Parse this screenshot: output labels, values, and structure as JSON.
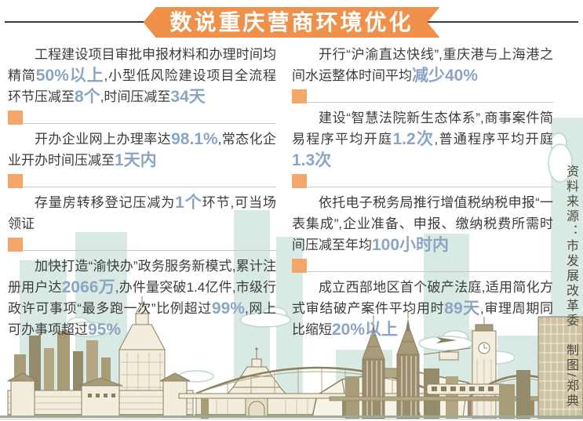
{
  "page": {
    "title_banner": "数说重庆营商环境优化"
  },
  "colors": {
    "banner_orange": "#f0914b",
    "bullet_orange": "#f3a76b",
    "highlight_blue": "#8ba5c5",
    "body_text": "#3c3c3c",
    "rule_dark": "#3a3a3a",
    "divider_gray": "#c9c9c9",
    "source_text": "#4f4b41"
  },
  "columns": {
    "left": [
      {
        "segments": [
          {
            "t": "工程建设项目审批申报材料和办理时间均精简"
          },
          {
            "t": "50%以上",
            "h": true
          },
          {
            "t": ",小型低风险建设项目全流程环节压减至"
          },
          {
            "t": "8个",
            "h": true
          },
          {
            "t": ",时间压减至"
          },
          {
            "t": "34天",
            "h": true
          }
        ]
      },
      {
        "segments": [
          {
            "t": "开办企业网上办理率达"
          },
          {
            "t": "98.1%",
            "h": true
          },
          {
            "t": ",常态化企业开办时间压减至"
          },
          {
            "t": "1天内",
            "h": true
          }
        ]
      },
      {
        "segments": [
          {
            "t": "存量房转移登记压减为"
          },
          {
            "t": "1个",
            "h": true
          },
          {
            "t": "环节,可当场领证"
          }
        ]
      },
      {
        "segments": [
          {
            "t": "加快打造“渝快办”政务服务新模式,累计注册用户达"
          },
          {
            "t": "2066万",
            "h": true
          },
          {
            "t": ",办件量突破1.4亿件,市级行政许可事项“最多跑一次”比例超过"
          },
          {
            "t": "99%",
            "h": true
          },
          {
            "t": ",网上可办事项超过"
          },
          {
            "t": "95%",
            "h": true
          }
        ]
      }
    ],
    "right": [
      {
        "segments": [
          {
            "t": "开行“沪渝直达快线”,重庆港与上海港之间水运整体时间平均"
          },
          {
            "t": "减少40%",
            "h": true
          }
        ]
      },
      {
        "segments": [
          {
            "t": "建设“智慧法院新生态体系”,商事案件简易程序平均开庭"
          },
          {
            "t": "1.2次",
            "h": true
          },
          {
            "t": ",普通程序平均开庭"
          },
          {
            "t": "1.3次",
            "h": true
          }
        ]
      },
      {
        "segments": [
          {
            "t": "依托电子税务局推行增值税纳税申报“一表集成”,企业准备、申报、缴纳税费所需时间压减至年均"
          },
          {
            "t": "100小时内",
            "h": true
          }
        ]
      },
      {
        "segments": [
          {
            "t": "成立西部地区首个破产法庭,适用简化方式审结破产案件平均用时"
          },
          {
            "t": "89天",
            "h": true
          },
          {
            "t": ",审理周期同比缩短"
          },
          {
            "t": "20%以上",
            "h": true
          }
        ]
      }
    ]
  },
  "source": {
    "note": "资料来源：市发展改革委　制图/郑典"
  },
  "illustration": {
    "name": "chongqing-skyline-illustration"
  }
}
